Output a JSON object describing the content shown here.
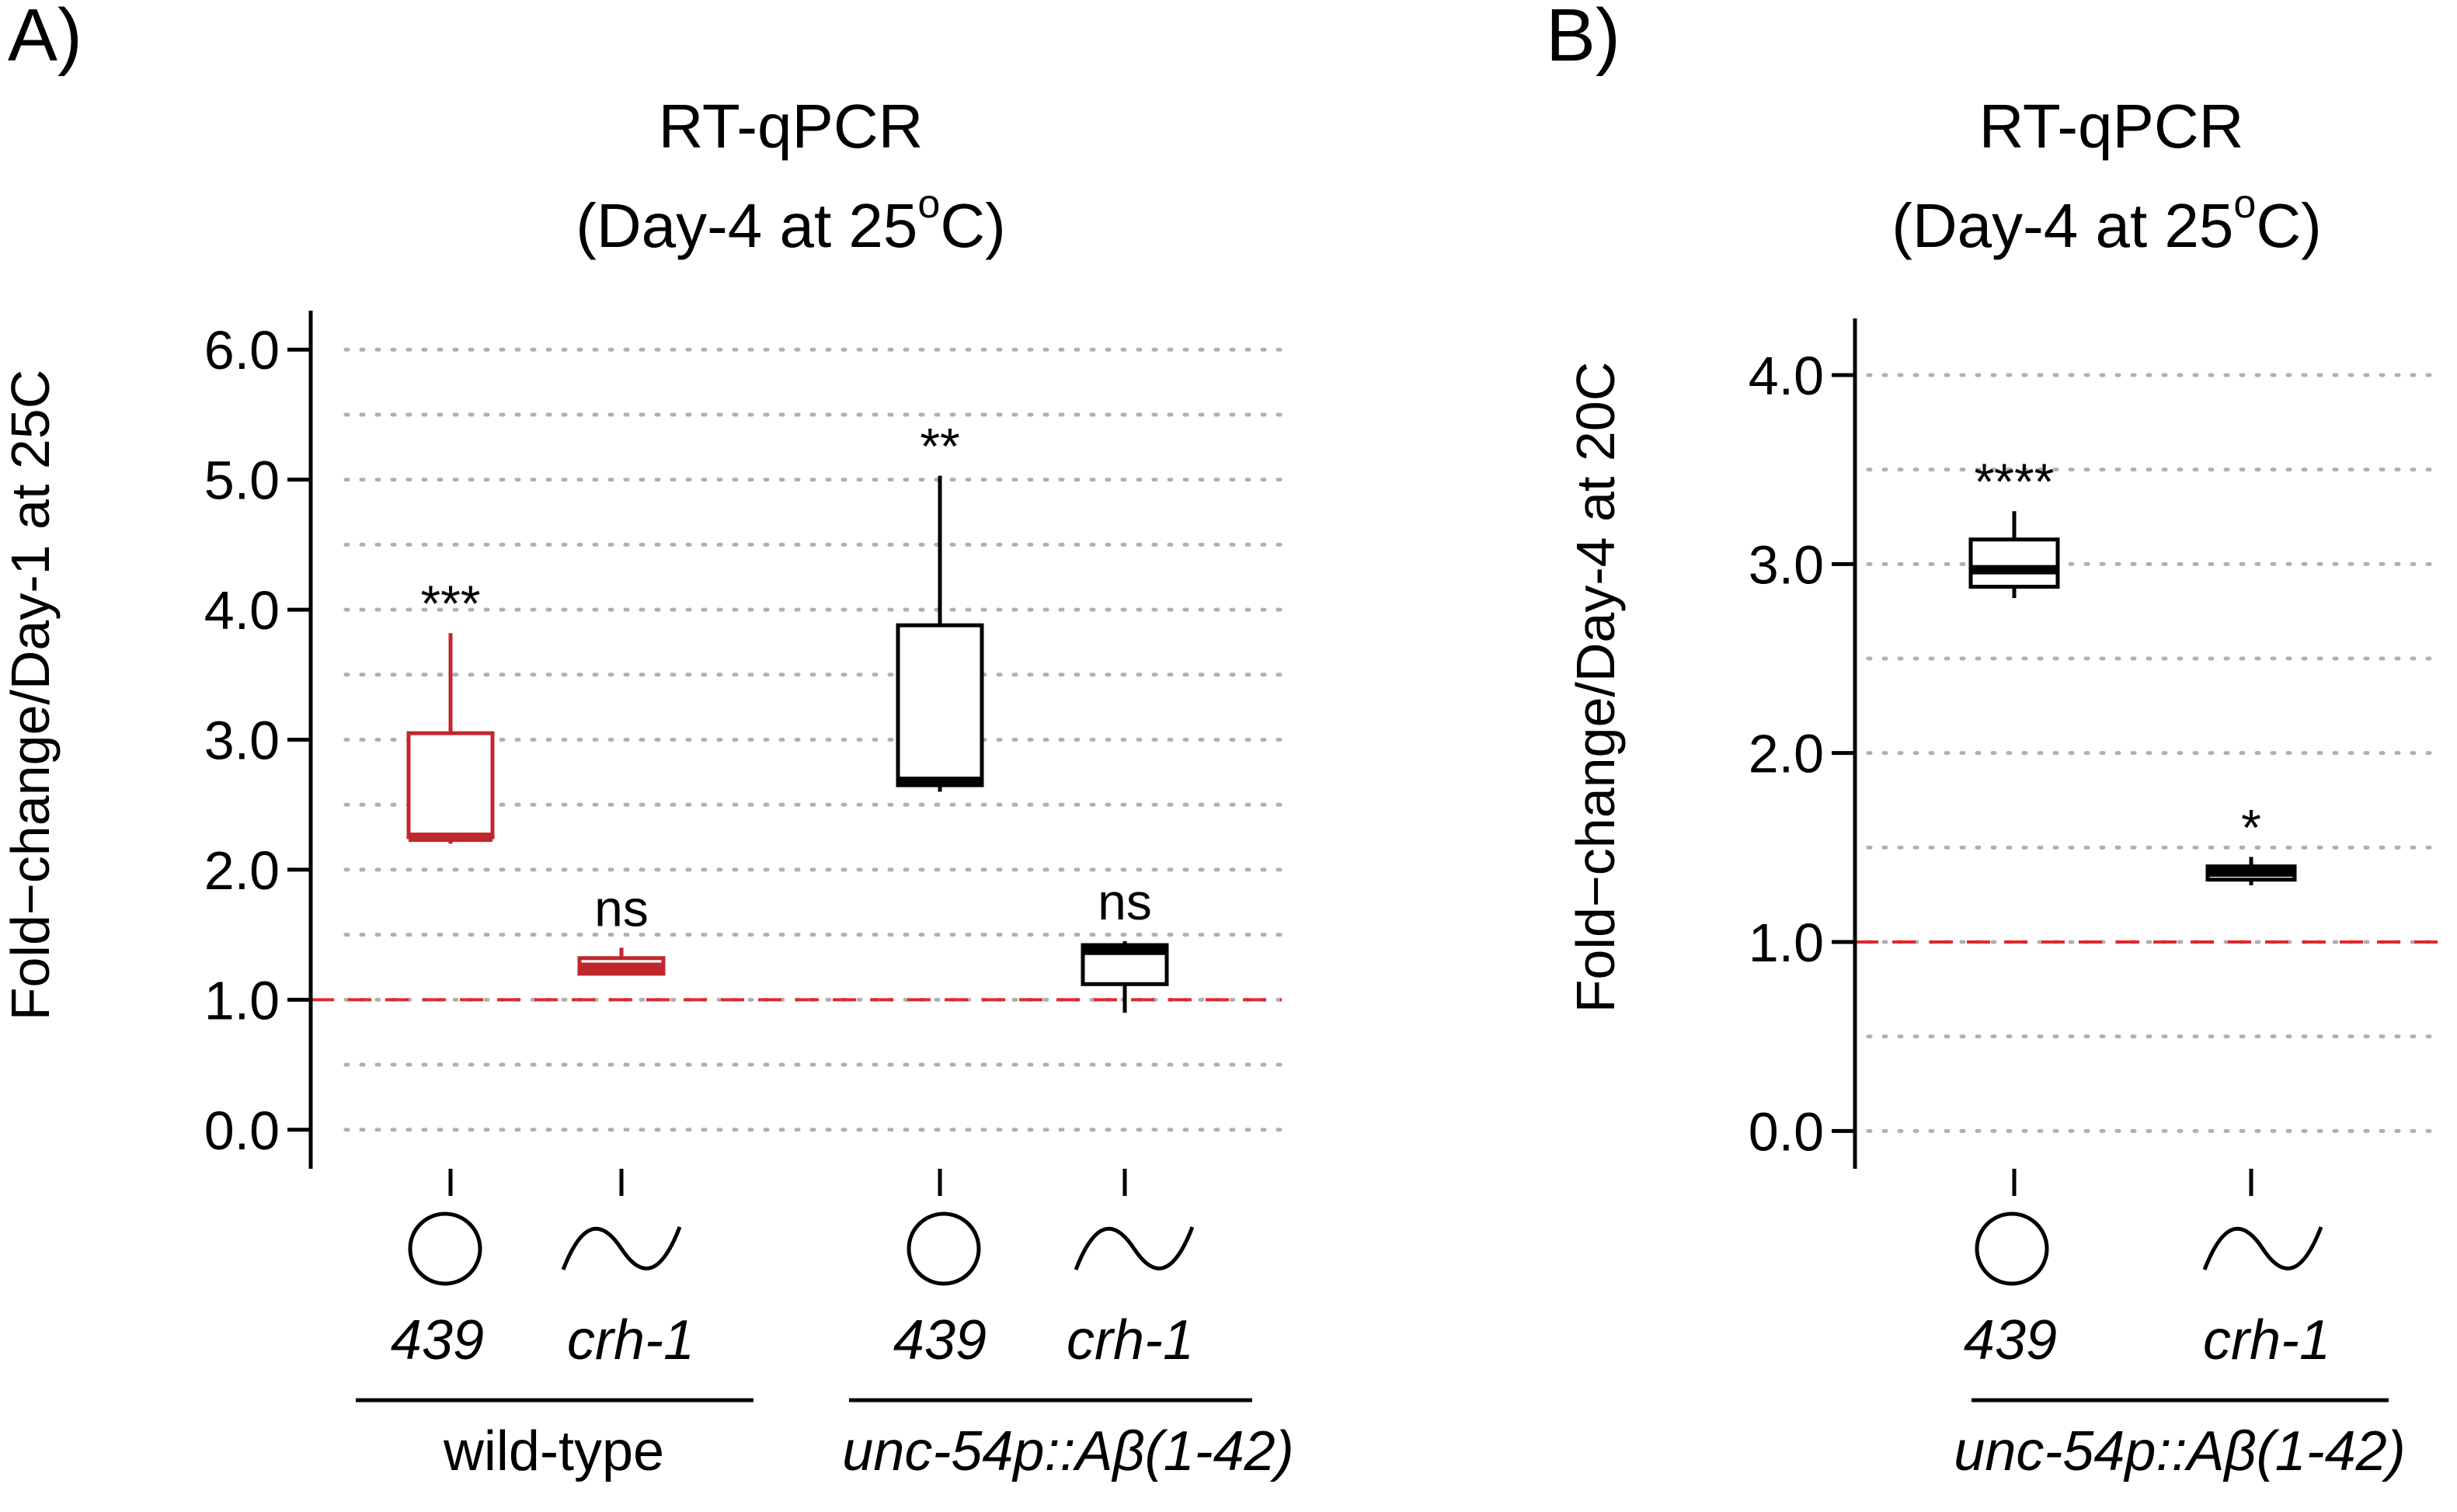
{
  "colors": {
    "wild_type": "#c0272d",
    "transgenic": "#000000",
    "reference_line": "#e0282e",
    "grid": "#b0b0b0"
  },
  "chart_data": [
    {
      "panel": "A)",
      "type": "box",
      "title_line1": "RT-qPCR",
      "title_line2_prefix": "(Day-4 at 25",
      "title_degree": "o",
      "title_line2_suffix": "C)",
      "ylabel": "Fold−change/Day-1 at 25C",
      "ylim": [
        -0.3,
        6.3
      ],
      "yticks": [
        0,
        1,
        2,
        3,
        4,
        5,
        6
      ],
      "ytick_labels": [
        "0.0",
        "1.0",
        "2.0",
        "3.0",
        "4.0",
        "5.0",
        "6.0"
      ],
      "grid": "dotted, every 0.5",
      "reference_line": 1.0,
      "boxes": [
        {
          "pos": 1,
          "symbol": "circle-icon",
          "label": "439",
          "color": "#c0272d",
          "min": 2.2,
          "q1": 2.25,
          "median": 2.25,
          "q3": 3.05,
          "max": 3.82,
          "sig": "***"
        },
        {
          "pos": 2,
          "symbol": "wave-icon",
          "label": "crh-1",
          "color": "#c0272d",
          "min": 1.2,
          "q1": 1.2,
          "median": 1.25,
          "q3": 1.32,
          "max": 1.4,
          "sig": "ns"
        },
        {
          "pos": 4,
          "symbol": "circle-icon",
          "label": "439",
          "color": "#000000",
          "min": 2.6,
          "q1": 2.65,
          "median": 2.68,
          "q3": 3.88,
          "max": 5.03,
          "sig": "**"
        },
        {
          "pos": 5,
          "symbol": "wave-icon",
          "label": "crh-1",
          "color": "#000000",
          "min": 0.9,
          "q1": 1.12,
          "median": 1.38,
          "q3": 1.42,
          "max": 1.45,
          "sig": "ns"
        }
      ],
      "groups": [
        {
          "label": "wild-type",
          "italic": false
        },
        {
          "label": "unc-54p::Aβ(1-42)",
          "italic": true
        }
      ]
    },
    {
      "panel": "B)",
      "type": "box",
      "title_line1": "RT-qPCR",
      "title_line2_prefix": "(Day-4 at 25",
      "title_degree": "o",
      "title_line2_suffix": "C)",
      "ylabel": "Fold−change/Day-4 at 20C",
      "ylim": [
        -0.2,
        4.3
      ],
      "yticks": [
        0,
        1,
        2,
        3,
        4
      ],
      "ytick_labels": [
        "0.0",
        "1.0",
        "2.0",
        "3.0",
        "4.0"
      ],
      "grid": "dotted, every 0.5",
      "reference_line": 1.0,
      "boxes": [
        {
          "pos": 1,
          "symbol": "circle-icon",
          "label": "439",
          "color": "#000000",
          "min": 2.82,
          "q1": 2.88,
          "median": 2.97,
          "q3": 3.13,
          "max": 3.28,
          "sig": "****"
        },
        {
          "pos": 2,
          "symbol": "wave-icon",
          "label": "crh-1",
          "color": "#000000",
          "min": 1.3,
          "q1": 1.33,
          "median": 1.37,
          "q3": 1.4,
          "max": 1.45,
          "sig": "*"
        }
      ],
      "groups": [
        {
          "label": "unc-54p::Aβ(1-42)",
          "italic": true
        }
      ]
    }
  ]
}
